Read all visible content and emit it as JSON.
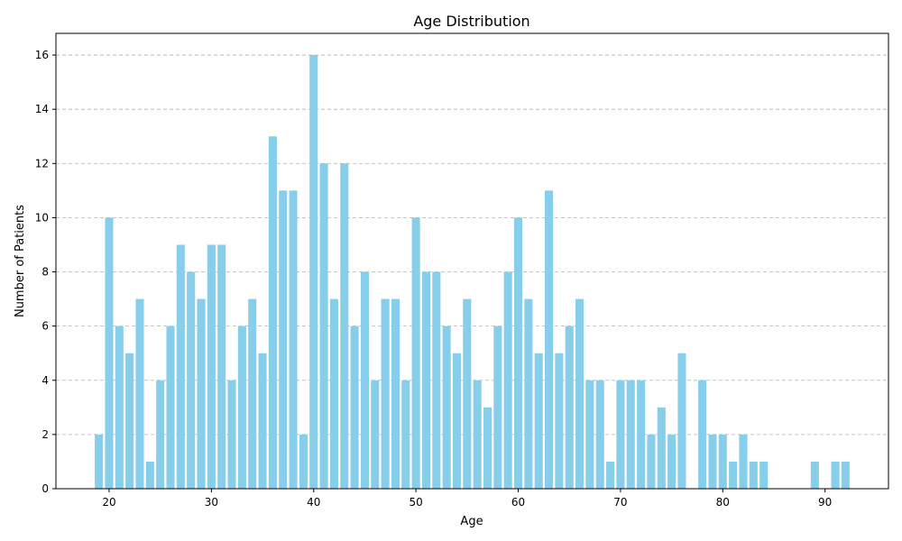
{
  "chart_data": {
    "type": "bar",
    "title": "Age Distribution",
    "xlabel": "Age",
    "ylabel": "Number of Patients",
    "bar_color": "#87CEEB",
    "grid": "y-dashed",
    "xlim": [
      14.8,
      96.2
    ],
    "ylim": [
      0,
      16.8
    ],
    "xticks": [
      20,
      30,
      40,
      50,
      60,
      70,
      80,
      90
    ],
    "yticks": [
      0,
      2,
      4,
      6,
      8,
      10,
      12,
      14,
      16
    ],
    "x": [
      19,
      20,
      21,
      22,
      23,
      24,
      25,
      26,
      27,
      28,
      29,
      30,
      31,
      32,
      33,
      34,
      35,
      36,
      37,
      38,
      39,
      40,
      41,
      42,
      43,
      44,
      45,
      46,
      47,
      48,
      49,
      50,
      51,
      52,
      53,
      54,
      55,
      56,
      57,
      58,
      59,
      60,
      61,
      62,
      63,
      64,
      65,
      66,
      67,
      68,
      69,
      70,
      71,
      72,
      73,
      74,
      75,
      76,
      78,
      79,
      80,
      81,
      82,
      83,
      84,
      89,
      91,
      92
    ],
    "values": [
      2,
      10,
      6,
      5,
      7,
      1,
      4,
      6,
      9,
      8,
      7,
      9,
      9,
      4,
      6,
      7,
      5,
      13,
      11,
      11,
      2,
      16,
      12,
      7,
      12,
      6,
      8,
      4,
      7,
      7,
      4,
      10,
      8,
      8,
      6,
      5,
      7,
      4,
      3,
      6,
      8,
      10,
      7,
      5,
      11,
      5,
      6,
      7,
      4,
      4,
      1,
      4,
      4,
      4,
      2,
      3,
      2,
      5,
      4,
      2,
      2,
      1,
      2,
      1,
      1,
      1,
      1,
      1
    ]
  }
}
